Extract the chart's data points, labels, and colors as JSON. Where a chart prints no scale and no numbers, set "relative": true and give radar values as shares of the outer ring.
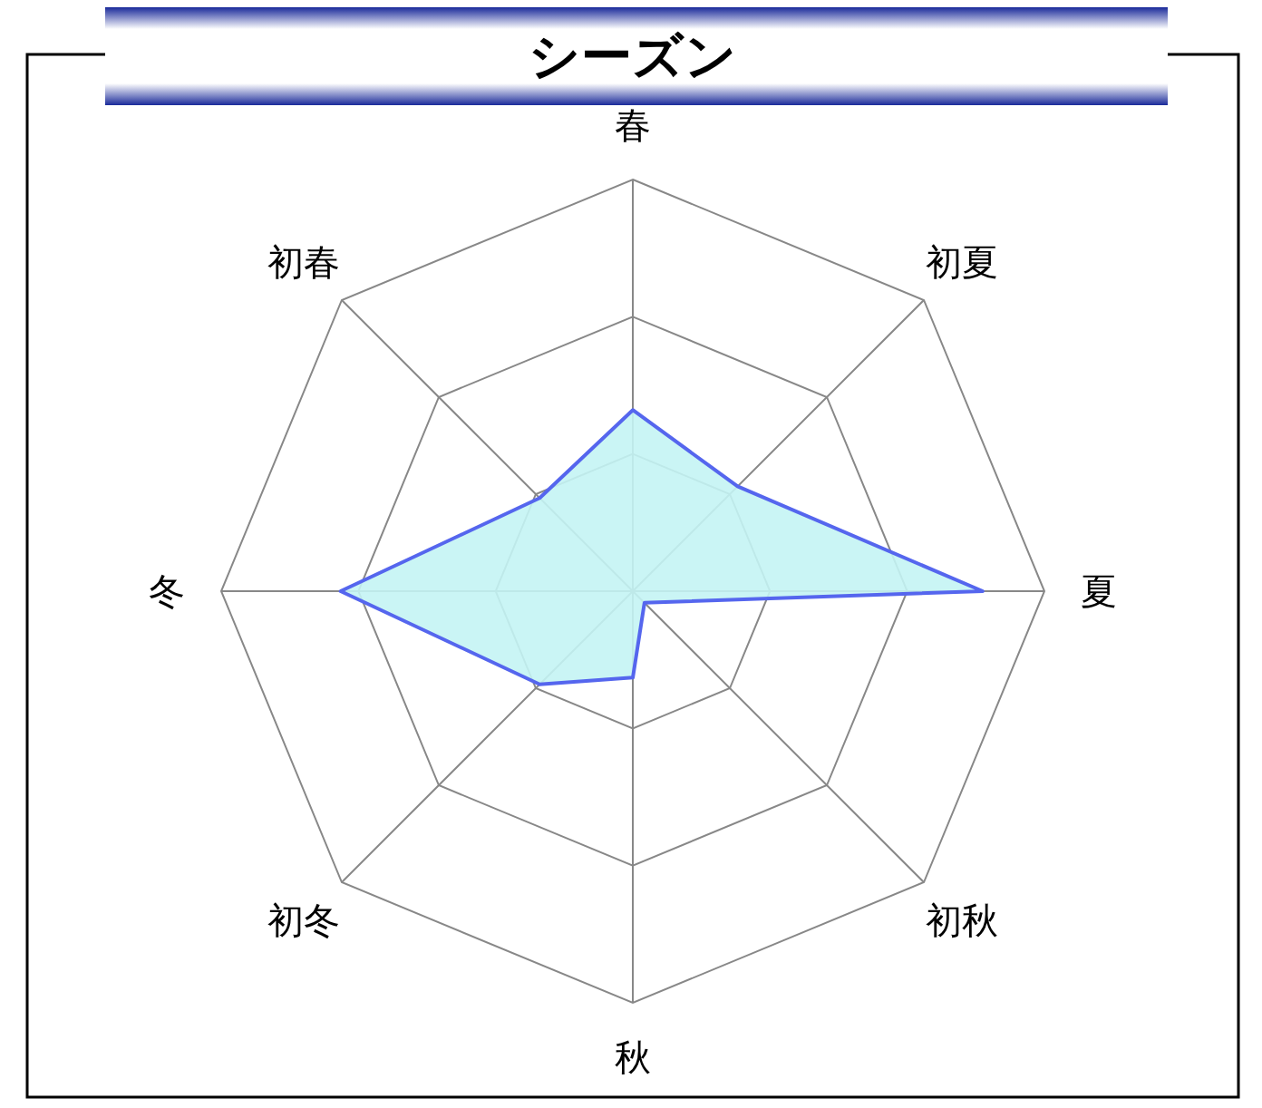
{
  "chart_data": {
    "type": "radar",
    "title": "シーズン",
    "relative": true,
    "grid": true,
    "categories": [
      "春",
      "初夏",
      "夏",
      "初秋",
      "秋",
      "初冬",
      "冬",
      "初春"
    ],
    "series": [
      {
        "color": "#5566ee",
        "values": [
          0.44,
          0.36,
          0.85,
          0.04,
          0.21,
          0.32,
          0.71,
          0.32
        ]
      }
    ]
  }
}
